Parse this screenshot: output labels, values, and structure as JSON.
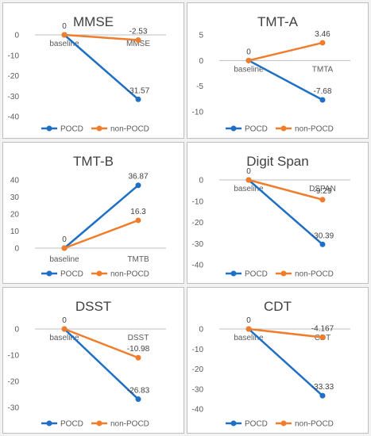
{
  "colors": {
    "POCD": "#1f6fc5",
    "non-POCD": "#ef7d2c",
    "axis": "#bfbfbf"
  },
  "legend": [
    "POCD",
    "non-POCD"
  ],
  "chart_data": [
    {
      "type": "line",
      "title": "MMSE",
      "categories": [
        "baseline",
        "MMSE"
      ],
      "series": [
        {
          "name": "POCD",
          "values": [
            0,
            -31.57
          ],
          "labels": [
            "0",
            "-31.57"
          ]
        },
        {
          "name": "non-POCD",
          "values": [
            0,
            -2.53
          ],
          "labels": [
            "",
            "-2.53"
          ]
        }
      ],
      "yticks": [
        0,
        -10,
        -20,
        -30,
        -40
      ],
      "ylim": [
        -40,
        0
      ]
    },
    {
      "type": "line",
      "title": "TMT-A",
      "categories": [
        "baseline",
        "TMTA"
      ],
      "series": [
        {
          "name": "POCD",
          "values": [
            0,
            -7.68
          ],
          "labels": [
            "0",
            "-7.68"
          ]
        },
        {
          "name": "non-POCD",
          "values": [
            0,
            3.46
          ],
          "labels": [
            "",
            "3.46"
          ]
        }
      ],
      "yticks": [
        5,
        0,
        -5,
        -10
      ],
      "ylim": [
        -10,
        5
      ]
    },
    {
      "type": "line",
      "title": "TMT-B",
      "categories": [
        "baseline",
        "TMTB"
      ],
      "series": [
        {
          "name": "POCD",
          "values": [
            0,
            36.87
          ],
          "labels": [
            "0",
            "36.87"
          ]
        },
        {
          "name": "non-POCD",
          "values": [
            0,
            16.3
          ],
          "labels": [
            "",
            "16.3"
          ]
        }
      ],
      "yticks": [
        40,
        30,
        20,
        10,
        0
      ],
      "ylim": [
        0,
        40
      ]
    },
    {
      "type": "line",
      "title": "Digit Span",
      "categories": [
        "baseline",
        "DSPAN"
      ],
      "series": [
        {
          "name": "POCD",
          "values": [
            0,
            -30.39
          ],
          "labels": [
            "0",
            "-30.39"
          ]
        },
        {
          "name": "non-POCD",
          "values": [
            0,
            -9.29
          ],
          "labels": [
            "",
            "-9.29"
          ]
        }
      ],
      "yticks": [
        0,
        -10,
        -20,
        -30,
        -40
      ],
      "ylim": [
        -40,
        0
      ]
    },
    {
      "type": "line",
      "title": "DSST",
      "categories": [
        "baseline",
        "DSST"
      ],
      "series": [
        {
          "name": "POCD",
          "values": [
            0,
            -26.83
          ],
          "labels": [
            "0",
            "-26.83"
          ]
        },
        {
          "name": "non-POCD",
          "values": [
            0,
            -10.98
          ],
          "labels": [
            "",
            "-10.98"
          ]
        }
      ],
      "yticks": [
        0,
        -10,
        -20,
        -30
      ],
      "ylim": [
        -30,
        0
      ]
    },
    {
      "type": "line",
      "title": "CDT",
      "categories": [
        "baseline",
        "CDT"
      ],
      "series": [
        {
          "name": "POCD",
          "values": [
            0,
            -33.33
          ],
          "labels": [
            "0",
            "-33.33"
          ]
        },
        {
          "name": "non-POCD",
          "values": [
            0,
            -4.167
          ],
          "labels": [
            "",
            "-4.167"
          ]
        }
      ],
      "yticks": [
        0,
        -10,
        -20,
        -30,
        -40
      ],
      "ylim": [
        -40,
        0
      ]
    }
  ]
}
